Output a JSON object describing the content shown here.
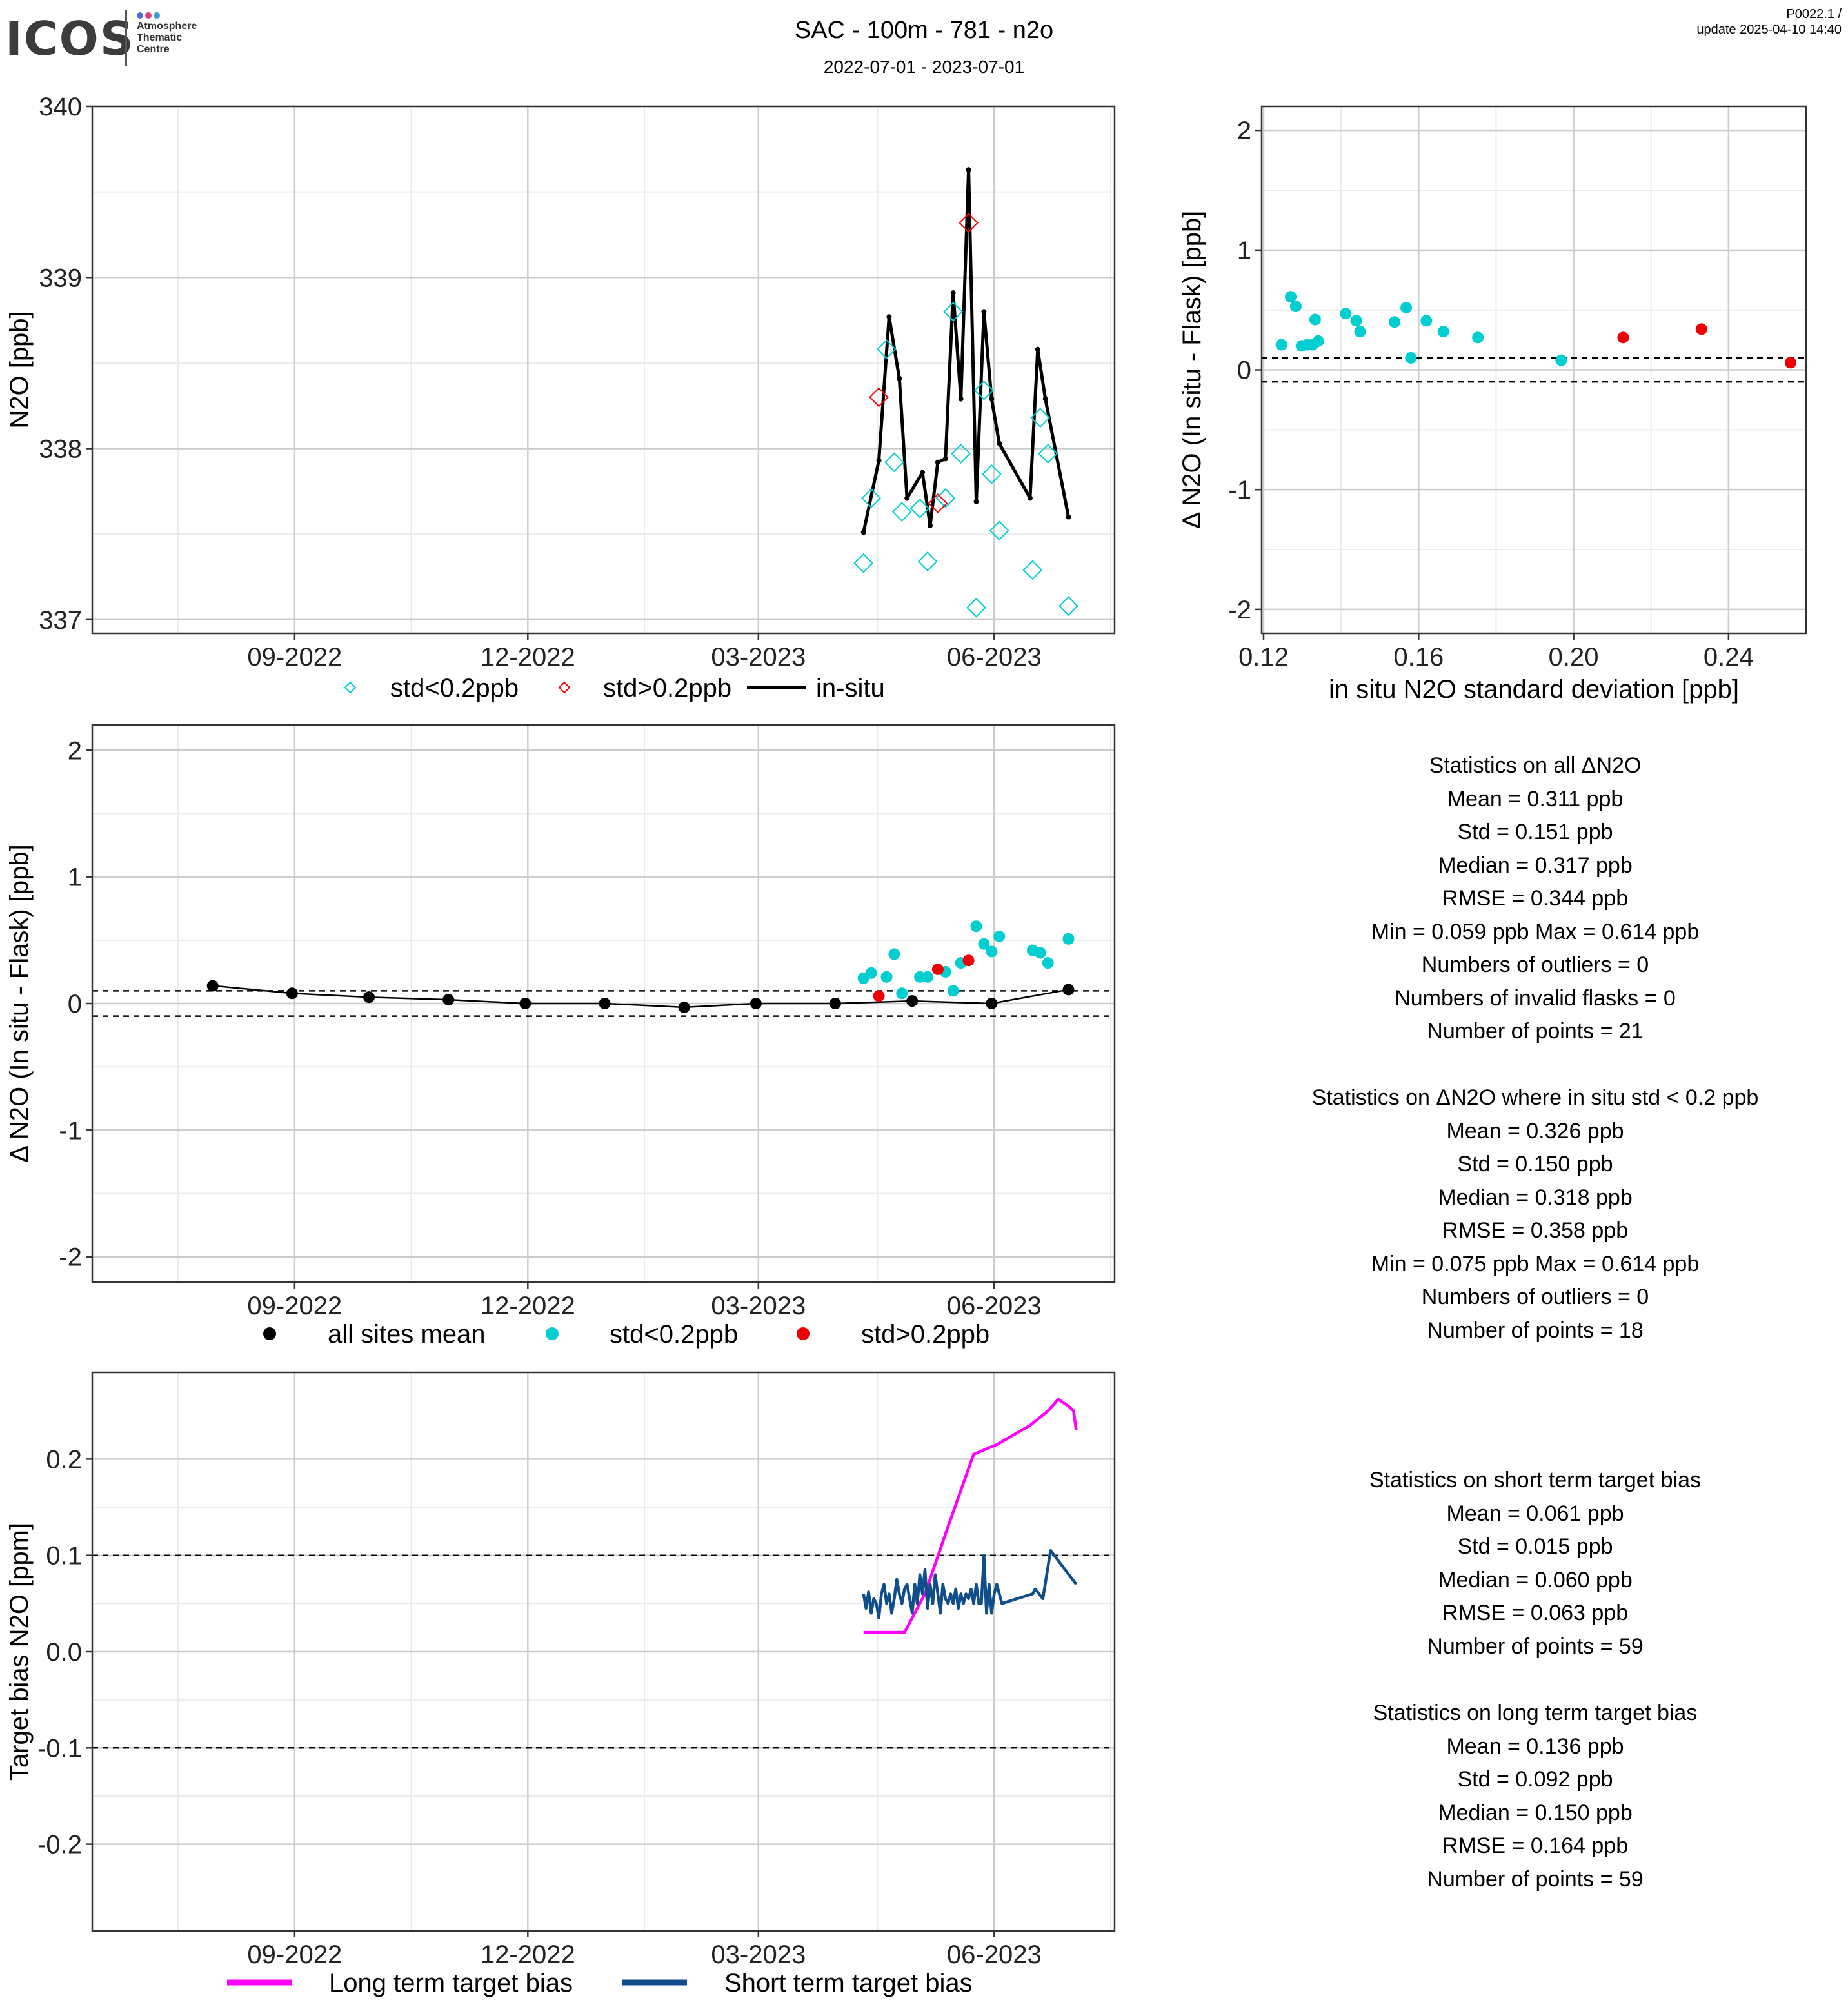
{
  "header": {
    "logo_text": "ICOS",
    "logo_subtext": [
      "Atmosphere",
      "Thematic",
      "Centre"
    ],
    "title": "SAC - 100m - 781 - n2o",
    "subtitle": "2022-07-01 - 2023-07-01",
    "version": "P0022.1 /",
    "updated": "update  2025-04-10 14:40"
  },
  "colors": {
    "cyan": "#00CED1",
    "red": "#EE0000",
    "black": "#000000",
    "magenta": "#FF00FF",
    "navy": "#104E8B",
    "grid_major": "#CCCCCC",
    "grid_minor": "#EBEBEB",
    "logo_dots": [
      "#4a6fd6",
      "#e03c78",
      "#3a9bd9"
    ]
  },
  "chart_data": [
    {
      "id": "timeseries",
      "type": "line",
      "ylabel": "N2O [ppb]",
      "xlabel": "",
      "x_type": "date",
      "xlim": [
        "2022-06-14",
        "2023-07-18"
      ],
      "ylim": [
        336.92,
        340.0
      ],
      "x_ticks": [
        "2022-09-01",
        "2022-12-01",
        "2023-03-01",
        "2023-06-01"
      ],
      "x_ticklabels": [
        "09-2022",
        "12-2022",
        "03-2023",
        "06-2023"
      ],
      "y_ticks": [
        337,
        338,
        339,
        340
      ],
      "grid": true,
      "legend_position": "bottom",
      "legend": [
        "std<0.2ppb",
        "std>0.2ppb",
        "in-situ"
      ],
      "series": [
        {
          "name": "in-situ",
          "kind": "line-points",
          "color": "#000000",
          "points": [
            [
              "2023-04-11",
              337.51
            ],
            [
              "2023-04-17",
              337.93
            ],
            [
              "2023-04-21",
              338.77
            ],
            [
              "2023-04-25",
              338.41
            ],
            [
              "2023-04-28",
              337.71
            ],
            [
              "2023-05-04",
              337.86
            ],
            [
              "2023-05-07",
              337.55
            ],
            [
              "2023-05-10",
              337.92
            ],
            [
              "2023-05-13",
              337.94
            ],
            [
              "2023-05-16",
              338.91
            ],
            [
              "2023-05-19",
              338.29
            ],
            [
              "2023-05-22",
              339.63
            ],
            [
              "2023-05-25",
              337.69
            ],
            [
              "2023-05-28",
              338.8
            ],
            [
              "2023-05-31",
              338.29
            ],
            [
              "2023-06-03",
              338.03
            ],
            [
              "2023-06-15",
              337.71
            ],
            [
              "2023-06-18",
              338.58
            ],
            [
              "2023-06-21",
              338.29
            ],
            [
              "2023-06-30",
              337.6
            ]
          ]
        },
        {
          "name": "std<0.2ppb",
          "kind": "diamond",
          "color": "#00CED1",
          "points": [
            [
              "2023-04-11",
              337.33
            ],
            [
              "2023-04-14",
              337.71
            ],
            [
              "2023-04-20",
              338.58
            ],
            [
              "2023-04-23",
              337.92
            ],
            [
              "2023-04-26",
              337.63
            ],
            [
              "2023-05-03",
              337.65
            ],
            [
              "2023-05-06",
              337.34
            ],
            [
              "2023-05-13",
              337.71
            ],
            [
              "2023-05-16",
              338.8
            ],
            [
              "2023-05-19",
              337.97
            ],
            [
              "2023-05-25",
              337.07
            ],
            [
              "2023-05-28",
              338.34
            ],
            [
              "2023-05-31",
              337.85
            ],
            [
              "2023-06-03",
              337.52
            ],
            [
              "2023-06-16",
              337.29
            ],
            [
              "2023-06-19",
              338.18
            ],
            [
              "2023-06-22",
              337.97
            ],
            [
              "2023-06-30",
              337.08
            ]
          ]
        },
        {
          "name": "std>0.2ppb",
          "kind": "diamond",
          "color": "#EE0000",
          "points": [
            [
              "2023-04-17",
              338.3
            ],
            [
              "2023-05-10",
              337.68
            ],
            [
              "2023-05-22",
              339.32
            ]
          ]
        }
      ]
    },
    {
      "id": "scatter_std",
      "type": "scatter",
      "xlabel": "in situ N2O standard deviation [ppb]",
      "ylabel": "Δ N2O (In situ - Flask) [ppb]",
      "xlim": [
        0.1195,
        0.26
      ],
      "ylim": [
        -2.2,
        2.2
      ],
      "x_ticks": [
        0.12,
        0.16,
        0.2,
        0.24
      ],
      "x_ticklabels": [
        "0.12",
        "0.16",
        "0.20",
        "0.24"
      ],
      "y_ticks": [
        -2,
        -1,
        0,
        1,
        2
      ],
      "grid": true,
      "hlines": [
        0.1,
        -0.1
      ],
      "series": [
        {
          "name": "std<0.2ppb",
          "color": "#00CED1",
          "points": [
            [
              0.1246,
              0.21
            ],
            [
              0.127,
              0.61
            ],
            [
              0.1283,
              0.53
            ],
            [
              0.1298,
              0.2
            ],
            [
              0.1313,
              0.21
            ],
            [
              0.1327,
              0.21
            ],
            [
              0.1333,
              0.42
            ],
            [
              0.1341,
              0.24
            ],
            [
              0.1412,
              0.47
            ],
            [
              0.1439,
              0.41
            ],
            [
              0.1449,
              0.32
            ],
            [
              0.1538,
              0.4
            ],
            [
              0.1568,
              0.52
            ],
            [
              0.158,
              0.1
            ],
            [
              0.162,
              0.41
            ],
            [
              0.1664,
              0.32
            ],
            [
              0.1753,
              0.27
            ],
            [
              0.1968,
              0.08
            ]
          ]
        },
        {
          "name": "std>0.2ppb",
          "color": "#EE0000",
          "points": [
            [
              0.2128,
              0.27
            ],
            [
              0.233,
              0.34
            ],
            [
              0.256,
              0.06
            ]
          ]
        }
      ]
    },
    {
      "id": "delta_timeseries",
      "type": "scatter",
      "ylabel": "Δ N2O (In situ - Flask) [ppb]",
      "xlabel": "",
      "x_type": "date",
      "xlim": [
        "2022-06-14",
        "2023-07-18"
      ],
      "ylim": [
        -2.2,
        2.2
      ],
      "x_ticks": [
        "2022-09-01",
        "2022-12-01",
        "2023-03-01",
        "2023-06-01"
      ],
      "x_ticklabels": [
        "09-2022",
        "12-2022",
        "03-2023",
        "06-2023"
      ],
      "y_ticks": [
        -2,
        -1,
        0,
        1,
        2
      ],
      "grid": true,
      "hlines": [
        0.1,
        -0.1
      ],
      "legend_position": "bottom",
      "legend": [
        "all sites mean",
        "std<0.2ppb",
        "std>0.2ppb"
      ],
      "series": [
        {
          "name": "all sites mean",
          "kind": "line-points",
          "color": "#000000",
          "points": [
            [
              "2022-07-31",
              0.14
            ],
            [
              "2022-08-31",
              0.08
            ],
            [
              "2022-09-30",
              0.05
            ],
            [
              "2022-10-31",
              0.03
            ],
            [
              "2022-11-30",
              0.0
            ],
            [
              "2022-12-31",
              0.0
            ],
            [
              "2023-01-31",
              -0.03
            ],
            [
              "2023-02-28",
              0.0
            ],
            [
              "2023-03-31",
              0.0
            ],
            [
              "2023-04-30",
              0.02
            ],
            [
              "2023-05-31",
              0.0
            ],
            [
              "2023-06-30",
              0.11
            ]
          ]
        },
        {
          "name": "std<0.2ppb",
          "color": "#00CED1",
          "points": [
            [
              "2023-04-11",
              0.2
            ],
            [
              "2023-04-14",
              0.24
            ],
            [
              "2023-04-20",
              0.21
            ],
            [
              "2023-04-23",
              0.39
            ],
            [
              "2023-04-26",
              0.08
            ],
            [
              "2023-05-03",
              0.21
            ],
            [
              "2023-05-06",
              0.21
            ],
            [
              "2023-05-13",
              0.25
            ],
            [
              "2023-05-16",
              0.1
            ],
            [
              "2023-05-19",
              0.32
            ],
            [
              "2023-05-25",
              0.61
            ],
            [
              "2023-05-28",
              0.47
            ],
            [
              "2023-05-31",
              0.41
            ],
            [
              "2023-06-03",
              0.53
            ],
            [
              "2023-06-16",
              0.42
            ],
            [
              "2023-06-19",
              0.4
            ],
            [
              "2023-06-22",
              0.32
            ],
            [
              "2023-06-30",
              0.51
            ]
          ]
        },
        {
          "name": "std>0.2ppb",
          "color": "#EE0000",
          "points": [
            [
              "2023-04-17",
              0.06
            ],
            [
              "2023-05-10",
              0.27
            ],
            [
              "2023-05-22",
              0.34
            ]
          ]
        }
      ]
    },
    {
      "id": "target_bias",
      "type": "line",
      "ylabel": "Target bias N2O [ppm]",
      "xlabel": "",
      "x_type": "date",
      "xlim": [
        "2022-06-14",
        "2023-07-18"
      ],
      "ylim": [
        -0.29,
        0.29
      ],
      "x_ticks": [
        "2022-09-01",
        "2022-12-01",
        "2023-03-01",
        "2023-06-01"
      ],
      "x_ticklabels": [
        "09-2022",
        "12-2022",
        "03-2023",
        "06-2023"
      ],
      "y_ticks": [
        -0.2,
        -0.1,
        0.0,
        0.1,
        0.2
      ],
      "y_ticklabels": [
        "-0.2",
        "-0.1",
        "0.0",
        "0.1",
        "0.2"
      ],
      "grid": true,
      "hlines": [
        0.1,
        -0.1
      ],
      "legend_position": "bottom",
      "legend": [
        "Long term target bias",
        "Short term target bias"
      ],
      "series": [
        {
          "name": "Long term target bias",
          "color": "#FF00FF",
          "points": [
            [
              "2023-04-11",
              0.02
            ],
            [
              "2023-04-27",
              0.02
            ],
            [
              "2023-05-05",
              0.06
            ],
            [
              "2023-05-14",
              0.13
            ],
            [
              "2023-05-24",
              0.205
            ],
            [
              "2023-06-02",
              0.215
            ],
            [
              "2023-06-15",
              0.235
            ],
            [
              "2023-06-22",
              0.25
            ],
            [
              "2023-06-26",
              0.262
            ],
            [
              "2023-06-30",
              0.255
            ],
            [
              "2023-07-02",
              0.25
            ],
            [
              "2023-07-03",
              0.23
            ]
          ]
        },
        {
          "name": "Short term target bias",
          "color": "#104E8B",
          "points": [
            [
              "2023-04-11",
              0.06
            ],
            [
              "2023-04-12",
              0.045
            ],
            [
              "2023-04-13",
              0.062
            ],
            [
              "2023-04-14",
              0.04
            ],
            [
              "2023-04-15",
              0.055
            ],
            [
              "2023-04-16",
              0.05
            ],
            [
              "2023-04-17",
              0.035
            ],
            [
              "2023-04-18",
              0.06
            ],
            [
              "2023-04-19",
              0.07
            ],
            [
              "2023-04-20",
              0.05
            ],
            [
              "2023-04-21",
              0.06
            ],
            [
              "2023-04-22",
              0.04
            ],
            [
              "2023-04-23",
              0.055
            ],
            [
              "2023-04-24",
              0.075
            ],
            [
              "2023-04-25",
              0.06
            ],
            [
              "2023-04-26",
              0.05
            ],
            [
              "2023-04-27",
              0.065
            ],
            [
              "2023-04-28",
              0.07
            ],
            [
              "2023-04-29",
              0.055
            ],
            [
              "2023-04-30",
              0.04
            ],
            [
              "2023-05-01",
              0.07
            ],
            [
              "2023-05-02",
              0.05
            ],
            [
              "2023-05-03",
              0.08
            ],
            [
              "2023-05-04",
              0.06
            ],
            [
              "2023-05-05",
              0.085
            ],
            [
              "2023-05-06",
              0.045
            ],
            [
              "2023-05-07",
              0.07
            ],
            [
              "2023-05-08",
              0.05
            ],
            [
              "2023-05-09",
              0.08
            ],
            [
              "2023-05-10",
              0.06
            ],
            [
              "2023-05-11",
              0.04
            ],
            [
              "2023-05-12",
              0.07
            ],
            [
              "2023-05-13",
              0.055
            ],
            [
              "2023-05-14",
              0.05
            ],
            [
              "2023-05-15",
              0.06
            ],
            [
              "2023-05-16",
              0.05
            ],
            [
              "2023-05-17",
              0.065
            ],
            [
              "2023-05-18",
              0.045
            ],
            [
              "2023-05-19",
              0.06
            ],
            [
              "2023-05-20",
              0.05
            ],
            [
              "2023-05-21",
              0.06
            ],
            [
              "2023-05-22",
              0.055
            ],
            [
              "2023-05-23",
              0.065
            ],
            [
              "2023-05-24",
              0.05
            ],
            [
              "2023-05-25",
              0.07
            ],
            [
              "2023-05-26",
              0.05
            ],
            [
              "2023-05-27",
              0.05
            ],
            [
              "2023-05-28",
              0.1
            ],
            [
              "2023-05-29",
              0.04
            ],
            [
              "2023-05-30",
              0.07
            ],
            [
              "2023-05-31",
              0.04
            ],
            [
              "2023-06-01",
              0.06
            ],
            [
              "2023-06-02",
              0.07
            ],
            [
              "2023-06-04",
              0.05
            ],
            [
              "2023-06-16",
              0.06
            ],
            [
              "2023-06-17",
              0.065
            ],
            [
              "2023-06-20",
              0.055
            ],
            [
              "2023-06-23",
              0.105
            ],
            [
              "2023-07-03",
              0.07
            ]
          ]
        }
      ]
    }
  ],
  "stats_all": {
    "heading": "Statistics on all ΔN2O",
    "lines": [
      "Mean =  0.311 ppb",
      "Std =  0.151 ppb",
      "Median =  0.317 ppb",
      "RMSE =  0.344 ppb",
      "Min =  0.059 ppb Max =  0.614 ppb",
      "Numbers of outliers =  0",
      "Numbers of invalid flasks =  0",
      "Number of points =  21"
    ]
  },
  "stats_std": {
    "heading": "Statistics on ΔN2O where in situ std < 0.2 ppb",
    "lines": [
      "Mean =  0.326 ppb",
      "Std =  0.150 ppb",
      "Median =  0.318 ppb",
      "RMSE =  0.358 ppb",
      "Min =  0.075 ppb Max =  0.614 ppb",
      "Numbers of outliers =  0",
      "Number of points =  18"
    ]
  },
  "stats_short": {
    "heading": "Statistics on short term target bias",
    "lines": [
      "Mean =  0.061 ppb",
      "Std =  0.015 ppb",
      "Median =  0.060 ppb",
      "RMSE =  0.063 ppb",
      "Number of points =  59"
    ]
  },
  "stats_long": {
    "heading": "Statistics on long term target bias",
    "lines": [
      "Mean =  0.136 ppb",
      "Std =  0.092 ppb",
      "Median =  0.150 ppb",
      "RMSE =  0.164 ppb",
      "Number of points =  59"
    ]
  }
}
